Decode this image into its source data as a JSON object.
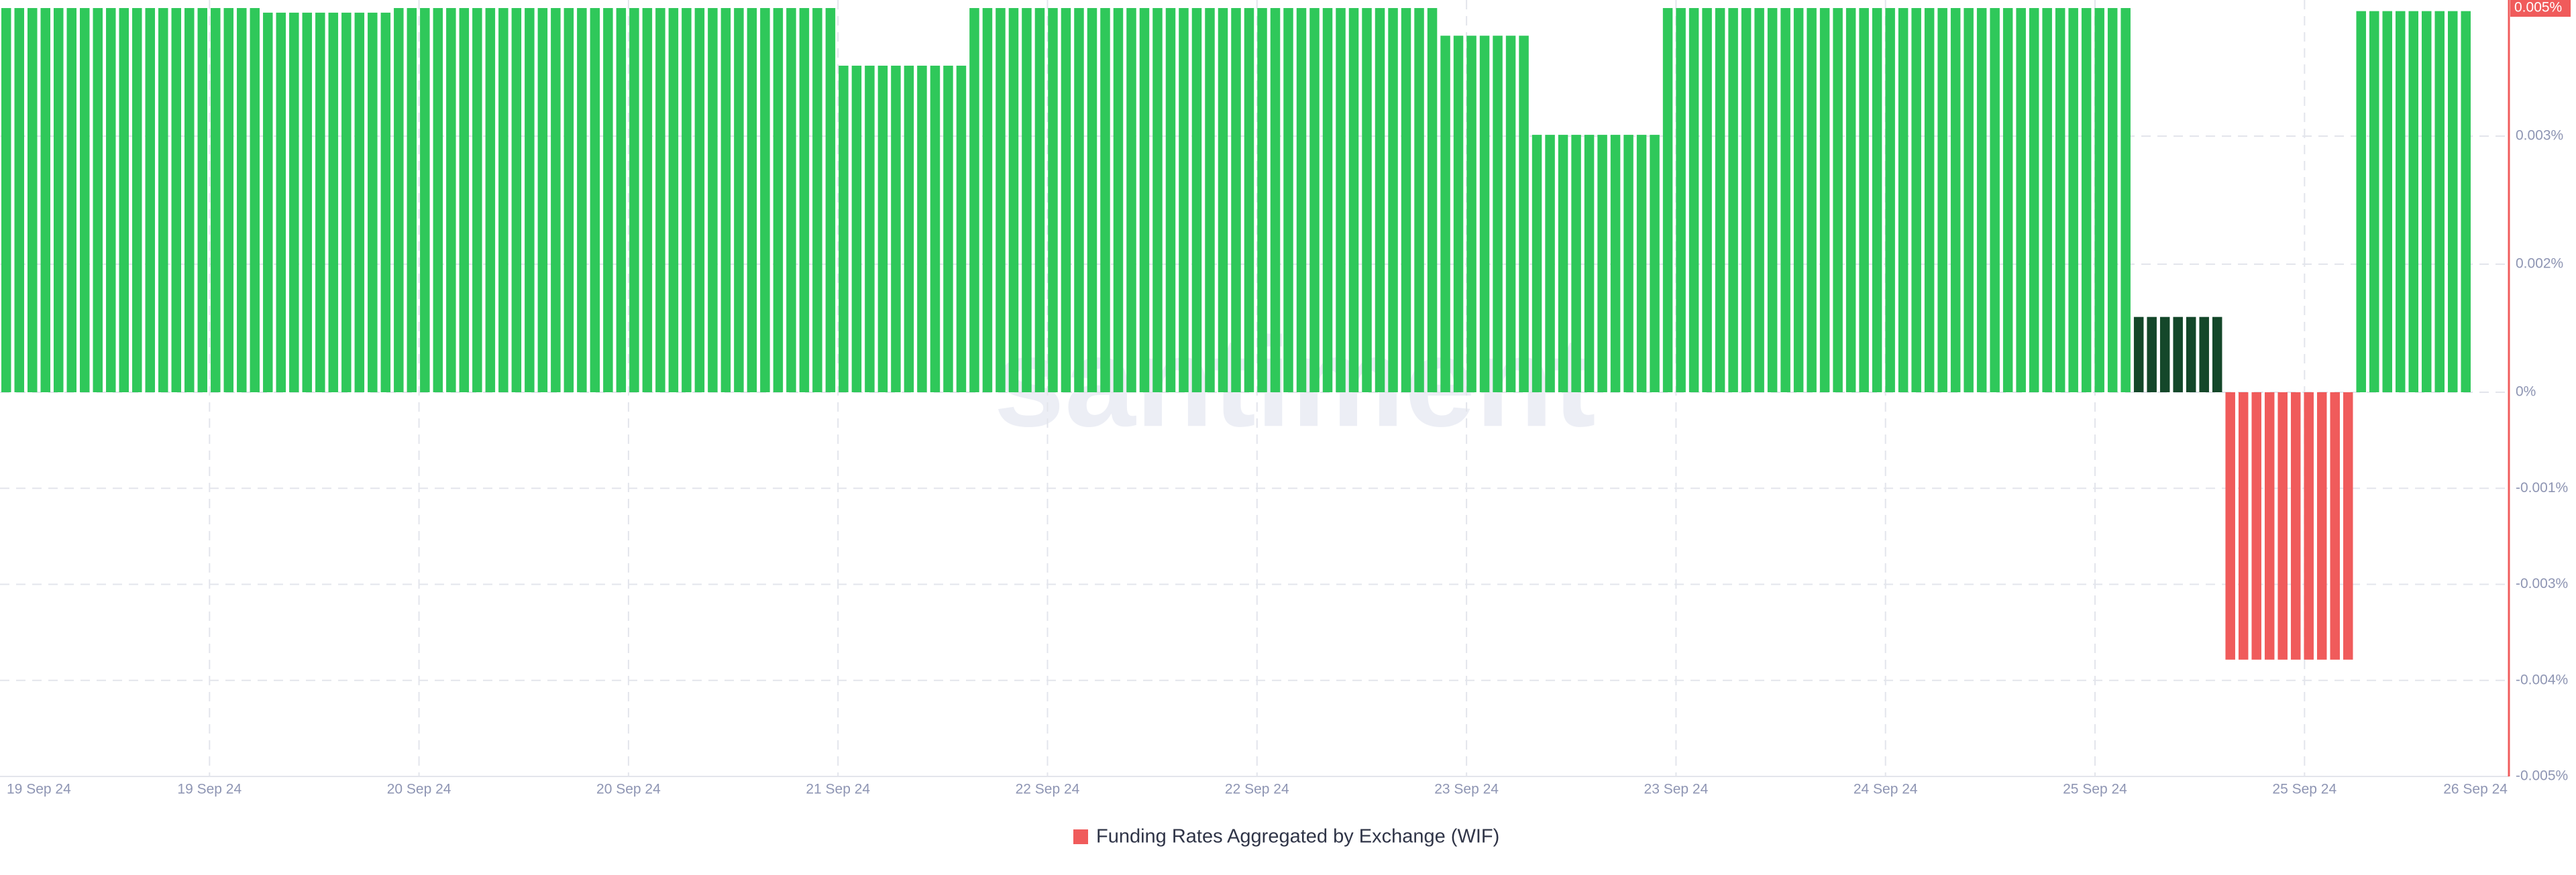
{
  "chart_data": {
    "type": "bar",
    "watermark": "santiment",
    "ylim": [
      -0.005,
      0.005
    ],
    "yticks": [
      {
        "value": 0.005,
        "label": "0.005%"
      },
      {
        "value": 0.003333,
        "label": "0.003%"
      },
      {
        "value": 0.001667,
        "label": "0.002%"
      },
      {
        "value": 0,
        "label": "0%"
      },
      {
        "value": -0.00125,
        "label": "-0.001%"
      },
      {
        "value": -0.0025,
        "label": "-0.003%"
      },
      {
        "value": -0.00375,
        "label": "-0.004%"
      },
      {
        "value": -0.005,
        "label": "-0.005%"
      }
    ],
    "x_labels": [
      "19 Sep 24",
      "19 Sep 24",
      "20 Sep 24",
      "20 Sep 24",
      "21 Sep 24",
      "22 Sep 24",
      "22 Sep 24",
      "23 Sep 24",
      "23 Sep 24",
      "24 Sep 24",
      "25 Sep 24",
      "25 Sep 24",
      "26 Sep 24"
    ],
    "grid": true,
    "series": [
      {
        "name": "Funding Rates Aggregated by Exchange (WIF)",
        "color": "#f05b5b",
        "values": [
          0.005,
          0.005,
          0.005,
          0.005,
          0.005,
          0.005,
          0.005,
          0.005,
          0.005,
          0.005,
          0.005,
          0.005,
          0.005,
          0.005,
          0.005,
          0.005,
          0.005,
          0.005,
          0.005,
          0.005,
          0.00494,
          0.00494,
          0.00494,
          0.00494,
          0.00494,
          0.00494,
          0.00494,
          0.00494,
          0.00494,
          0.00494,
          0.005,
          0.005,
          0.005,
          0.005,
          0.005,
          0.005,
          0.005,
          0.005,
          0.005,
          0.005,
          0.005,
          0.005,
          0.005,
          0.005,
          0.005,
          0.005,
          0.005,
          0.005,
          0.005,
          0.005,
          0.005,
          0.005,
          0.005,
          0.005,
          0.005,
          0.005,
          0.005,
          0.005,
          0.005,
          0.005,
          0.005,
          0.005,
          0.005,
          0.005,
          0.00425,
          0.00425,
          0.00425,
          0.00425,
          0.00425,
          0.00425,
          0.00425,
          0.00425,
          0.00425,
          0.00425,
          0.005,
          0.005,
          0.005,
          0.005,
          0.005,
          0.005,
          0.005,
          0.005,
          0.005,
          0.005,
          0.005,
          0.005,
          0.005,
          0.005,
          0.005,
          0.005,
          0.005,
          0.005,
          0.005,
          0.005,
          0.005,
          0.005,
          0.005,
          0.005,
          0.005,
          0.005,
          0.005,
          0.005,
          0.005,
          0.005,
          0.005,
          0.005,
          0.005,
          0.005,
          0.005,
          0.005,
          0.00464,
          0.00464,
          0.00464,
          0.00464,
          0.00464,
          0.00464,
          0.00464,
          0.00335,
          0.00335,
          0.00335,
          0.00335,
          0.00335,
          0.00335,
          0.00335,
          0.00335,
          0.00335,
          0.00335,
          0.005,
          0.005,
          0.005,
          0.005,
          0.005,
          0.005,
          0.005,
          0.005,
          0.005,
          0.005,
          0.005,
          0.005,
          0.005,
          0.005,
          0.005,
          0.005,
          0.005,
          0.005,
          0.005,
          0.005,
          0.005,
          0.005,
          0.005,
          0.005,
          0.005,
          0.005,
          0.005,
          0.005,
          0.005,
          0.005,
          0.005,
          0.005,
          0.005,
          0.005,
          0.005,
          0.005,
          0.00098,
          0.00098,
          0.00098,
          0.00098,
          0.00098,
          0.00098,
          0.00098,
          -0.00348,
          -0.00348,
          -0.00348,
          -0.00348,
          -0.00348,
          -0.00348,
          -0.00348,
          -0.00348,
          -0.00348,
          -0.00348,
          0.00496,
          0.00496,
          0.00496,
          0.00496,
          0.00496,
          0.00496,
          0.00496,
          0.00496,
          0.00496
        ],
        "colors": [
          "#2fc85a",
          "#2fc85a",
          "#2fc85a",
          "#2fc85a",
          "#2fc85a",
          "#2fc85a",
          "#2fc85a",
          "#2fc85a",
          "#2fc85a",
          "#2fc85a",
          "#2fc85a",
          "#2fc85a",
          "#2fc85a",
          "#2fc85a",
          "#2fc85a",
          "#2fc85a",
          "#2fc85a",
          "#2fc85a",
          "#2fc85a",
          "#2fc85a",
          "#2fc85a",
          "#2fc85a",
          "#2fc85a",
          "#2fc85a",
          "#2fc85a",
          "#2fc85a",
          "#2fc85a",
          "#2fc85a",
          "#2fc85a",
          "#2fc85a",
          "#2fc85a",
          "#2fc85a",
          "#2fc85a",
          "#2fc85a",
          "#2fc85a",
          "#2fc85a",
          "#2fc85a",
          "#2fc85a",
          "#2fc85a",
          "#2fc85a",
          "#2fc85a",
          "#2fc85a",
          "#2fc85a",
          "#2fc85a",
          "#2fc85a",
          "#2fc85a",
          "#2fc85a",
          "#2fc85a",
          "#2fc85a",
          "#2fc85a",
          "#2fc85a",
          "#2fc85a",
          "#2fc85a",
          "#2fc85a",
          "#2fc85a",
          "#2fc85a",
          "#2fc85a",
          "#2fc85a",
          "#2fc85a",
          "#2fc85a",
          "#2fc85a",
          "#2fc85a",
          "#2fc85a",
          "#2fc85a",
          "#2fc85a",
          "#2fc85a",
          "#2fc85a",
          "#2fc85a",
          "#2fc85a",
          "#2fc85a",
          "#2fc85a",
          "#2fc85a",
          "#2fc85a",
          "#2fc85a",
          "#2fc85a",
          "#2fc85a",
          "#2fc85a",
          "#2fc85a",
          "#2fc85a",
          "#2fc85a",
          "#2fc85a",
          "#2fc85a",
          "#2fc85a",
          "#2fc85a",
          "#2fc85a",
          "#2fc85a",
          "#2fc85a",
          "#2fc85a",
          "#2fc85a",
          "#2fc85a",
          "#2fc85a",
          "#2fc85a",
          "#2fc85a",
          "#2fc85a",
          "#2fc85a",
          "#2fc85a",
          "#2fc85a",
          "#2fc85a",
          "#2fc85a",
          "#2fc85a",
          "#2fc85a",
          "#2fc85a",
          "#2fc85a",
          "#2fc85a",
          "#2fc85a",
          "#2fc85a",
          "#2fc85a",
          "#2fc85a",
          "#2fc85a",
          "#2fc85a",
          "#2fc85a",
          "#2fc85a",
          "#2fc85a",
          "#2fc85a",
          "#2fc85a",
          "#2fc85a",
          "#2fc85a",
          "#2fc85a",
          "#2fc85a",
          "#2fc85a",
          "#2fc85a",
          "#2fc85a",
          "#2fc85a",
          "#2fc85a",
          "#2fc85a",
          "#2fc85a",
          "#2fc85a",
          "#2fc85a",
          "#2fc85a",
          "#2fc85a",
          "#2fc85a",
          "#2fc85a",
          "#2fc85a",
          "#2fc85a",
          "#2fc85a",
          "#2fc85a",
          "#2fc85a",
          "#2fc85a",
          "#2fc85a",
          "#2fc85a",
          "#2fc85a",
          "#2fc85a",
          "#2fc85a",
          "#2fc85a",
          "#2fc85a",
          "#2fc85a",
          "#2fc85a",
          "#2fc85a",
          "#2fc85a",
          "#2fc85a",
          "#2fc85a",
          "#2fc85a",
          "#2fc85a",
          "#2fc85a",
          "#2fc85a",
          "#2fc85a",
          "#2fc85a",
          "#2fc85a",
          "#2fc85a",
          "#2fc85a",
          "#2fc85a",
          "#2fc85a",
          "#2fc85a",
          "#14472a",
          "#14472a",
          "#14472a",
          "#14472a",
          "#14472a",
          "#14472a",
          "#14472a",
          "#f05b5b",
          "#f05b5b",
          "#f05b5b",
          "#f05b5b",
          "#f05b5b",
          "#f05b5b",
          "#f05b5b",
          "#f05b5b",
          "#f05b5b",
          "#f05b5b",
          "#2fc85a",
          "#2fc85a",
          "#2fc85a",
          "#2fc85a",
          "#2fc85a",
          "#2fc85a",
          "#2fc85a",
          "#2fc85a",
          "#2fc85a"
        ]
      }
    ]
  }
}
